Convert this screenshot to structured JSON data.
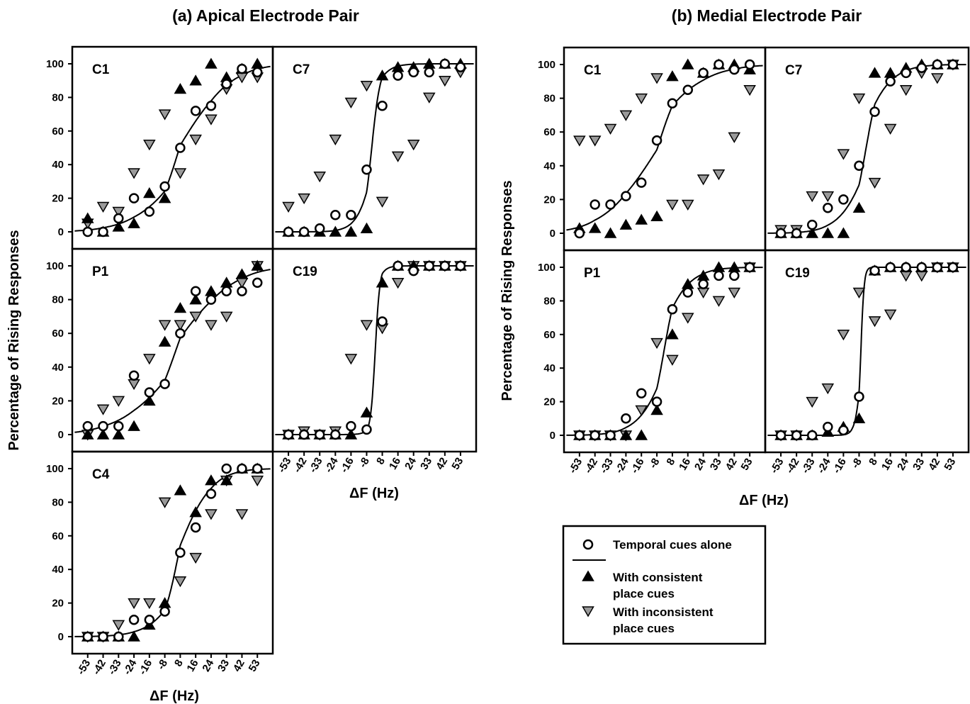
{
  "titles": {
    "a": "(a) Apical Electrode Pair",
    "b": "(b) Medial Electrode Pair"
  },
  "y_label": "Percentage of Rising Responses",
  "x_label": "ΔF (Hz)",
  "legend": {
    "temporal": "Temporal cues alone",
    "consistent": [
      "With consistent",
      "place cues"
    ],
    "inconsistent": [
      "With inconsistent",
      "place cues"
    ]
  },
  "colors": {
    "consistent_fill": "#000000",
    "inconsistent_fill": "#9a9a9a",
    "temporal_fill": "#ffffff"
  },
  "chart_data": {
    "type": "scatter",
    "x_tick_labels": [
      "-53",
      "-42",
      "-33",
      "-24",
      "-16",
      "-8",
      "8",
      "16",
      "24",
      "33",
      "42",
      "53"
    ],
    "x": [
      -53,
      -42,
      -33,
      -24,
      -16,
      -8,
      8,
      16,
      24,
      33,
      42,
      53
    ],
    "y_ticks": [
      0,
      20,
      40,
      60,
      80,
      100
    ],
    "ylim": [
      0,
      100
    ],
    "series_names": [
      "Temporal cues alone",
      "With consistent place cues",
      "With inconsistent place cues"
    ],
    "panels": [
      {
        "group": "a",
        "label": "C1",
        "temporal": [
          0,
          0,
          8,
          20,
          12,
          27,
          50,
          72,
          75,
          88,
          97,
          95
        ],
        "consistent": [
          8,
          0,
          3,
          5,
          23,
          20,
          85,
          90,
          100,
          92,
          97,
          100
        ],
        "inconsistent": [
          5,
          15,
          12,
          35,
          52,
          70,
          35,
          55,
          67,
          85,
          92,
          92
        ],
        "fit": {
          "midpoint": 7.2,
          "slope": 0.075
        }
      },
      {
        "group": "a",
        "label": "C7",
        "temporal": [
          0,
          0,
          2,
          10,
          10,
          37,
          75,
          93,
          95,
          95,
          100,
          98
        ],
        "consistent": [
          0,
          0,
          0,
          0,
          0,
          2,
          93,
          98,
          98,
          100,
          100,
          100
        ],
        "inconsistent": [
          15,
          20,
          33,
          55,
          77,
          87,
          18,
          45,
          52,
          80,
          90,
          95
        ],
        "fit": {
          "midpoint": -2.8,
          "slope": 0.225
        }
      },
      {
        "group": "a",
        "label": "P1",
        "temporal": [
          5,
          5,
          5,
          35,
          25,
          30,
          60,
          85,
          80,
          85,
          85,
          90
        ],
        "consistent": [
          0,
          0,
          0,
          5,
          20,
          55,
          75,
          80,
          85,
          90,
          95,
          100
        ],
        "inconsistent": [
          0,
          15,
          20,
          30,
          45,
          65,
          65,
          70,
          65,
          70,
          90,
          100
        ],
        "fit": {
          "midpoint": 3.5,
          "slope": 0.065
        }
      },
      {
        "group": "a",
        "label": "C19",
        "temporal": [
          0,
          0,
          0,
          0,
          5,
          3,
          67,
          100,
          97,
          100,
          100,
          100
        ],
        "consistent": [
          0,
          0,
          0,
          0,
          0,
          13,
          90,
          100,
          100,
          100,
          100,
          100
        ],
        "inconsistent": [
          0,
          2,
          0,
          2,
          45,
          65,
          63,
          90,
          100,
          100,
          100,
          100
        ],
        "fit": {
          "midpoint": 0.8,
          "slope": 0.42
        }
      },
      {
        "group": "a",
        "label": "C4",
        "temporal": [
          0,
          0,
          0,
          10,
          10,
          15,
          50,
          65,
          85,
          100,
          100,
          100
        ],
        "consistent": [
          0,
          0,
          0,
          0,
          7,
          20,
          87,
          74,
          93,
          93,
          100,
          100
        ],
        "inconsistent": [
          0,
          0,
          7,
          20,
          20,
          80,
          33,
          47,
          73,
          93,
          73,
          93
        ],
        "fit": {
          "midpoint": 6.5,
          "slope": 0.115
        }
      },
      {
        "group": "b",
        "label": "C1",
        "temporal": [
          0,
          17,
          17,
          22,
          30,
          55,
          77,
          85,
          95,
          100,
          97,
          100
        ],
        "consistent": [
          3,
          3,
          0,
          5,
          8,
          10,
          93,
          100,
          95,
          100,
          100,
          97
        ],
        "inconsistent": [
          55,
          55,
          62,
          70,
          80,
          92,
          17,
          17,
          32,
          35,
          57,
          85
        ],
        "fit": {
          "midpoint": -7.7,
          "slope": 0.072
        }
      },
      {
        "group": "b",
        "label": "C7",
        "temporal": [
          0,
          0,
          5,
          15,
          20,
          40,
          72,
          90,
          95,
          98,
          100,
          100
        ],
        "consistent": [
          0,
          0,
          0,
          0,
          0,
          15,
          95,
          95,
          98,
          100,
          100,
          100
        ],
        "inconsistent": [
          2,
          2,
          22,
          22,
          47,
          80,
          30,
          62,
          85,
          95,
          92,
          100
        ],
        "fit": {
          "midpoint": -1.0,
          "slope": 0.13
        }
      },
      {
        "group": "b",
        "label": "P1",
        "temporal": [
          0,
          0,
          0,
          10,
          25,
          20,
          75,
          85,
          90,
          95,
          95,
          100
        ],
        "consistent": [
          0,
          0,
          0,
          0,
          0,
          15,
          60,
          90,
          95,
          100,
          100,
          100
        ],
        "inconsistent": [
          0,
          0,
          0,
          0,
          15,
          55,
          45,
          70,
          85,
          80,
          85,
          100
        ],
        "fit": {
          "midpoint": -0.7,
          "slope": 0.13
        }
      },
      {
        "group": "b",
        "label": "C19",
        "temporal": [
          0,
          0,
          0,
          5,
          3,
          23,
          98,
          100,
          100,
          100,
          100,
          100
        ],
        "consistent": [
          0,
          0,
          0,
          2,
          5,
          10,
          98,
          100,
          100,
          100,
          100,
          100
        ],
        "inconsistent": [
          0,
          0,
          20,
          28,
          60,
          85,
          68,
          72,
          95,
          95,
          100,
          100
        ],
        "fit": {
          "midpoint": -6.2,
          "slope": 0.6
        }
      }
    ]
  }
}
